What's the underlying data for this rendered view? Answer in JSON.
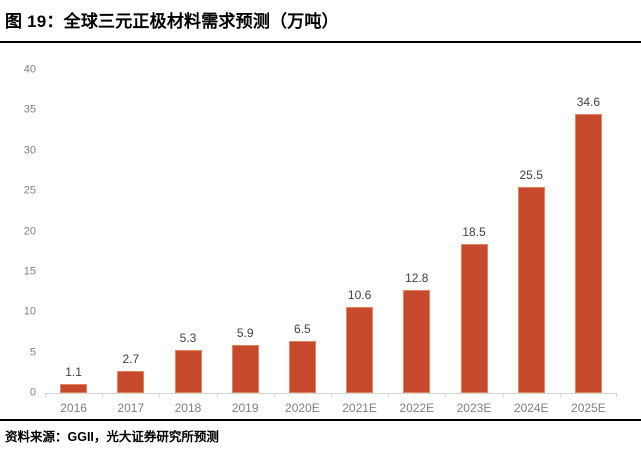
{
  "figure": {
    "title": "图 19：全球三元正极材料需求预测（万吨）",
    "source": "资料来源：GGII，光大证券研究所预测"
  },
  "chart_data": {
    "type": "bar",
    "title": "全球三元正极材料需求预测（万吨）",
    "categories": [
      "2016",
      "2017",
      "2018",
      "2019",
      "2020E",
      "2021E",
      "2022E",
      "2023E",
      "2024E",
      "2025E"
    ],
    "values": [
      1.1,
      2.7,
      5.3,
      5.9,
      6.5,
      10.6,
      12.8,
      18.5,
      25.5,
      34.6
    ],
    "value_labels": [
      "1.1",
      "2.7",
      "5.3",
      "5.9",
      "6.5",
      "10.6",
      "12.8",
      "18.5",
      "25.5",
      "34.6"
    ],
    "xlabel": "",
    "ylabel": "",
    "ylim": [
      0,
      40
    ],
    "ytick_step": 5,
    "grid": false,
    "legend": "none",
    "colors": {
      "bar_fill": "#C5492A",
      "bar_edge": "#DD8663",
      "value_label": "#404040",
      "tick_label": "#7F7F7F",
      "axis_line": "#D6D4D4"
    }
  }
}
